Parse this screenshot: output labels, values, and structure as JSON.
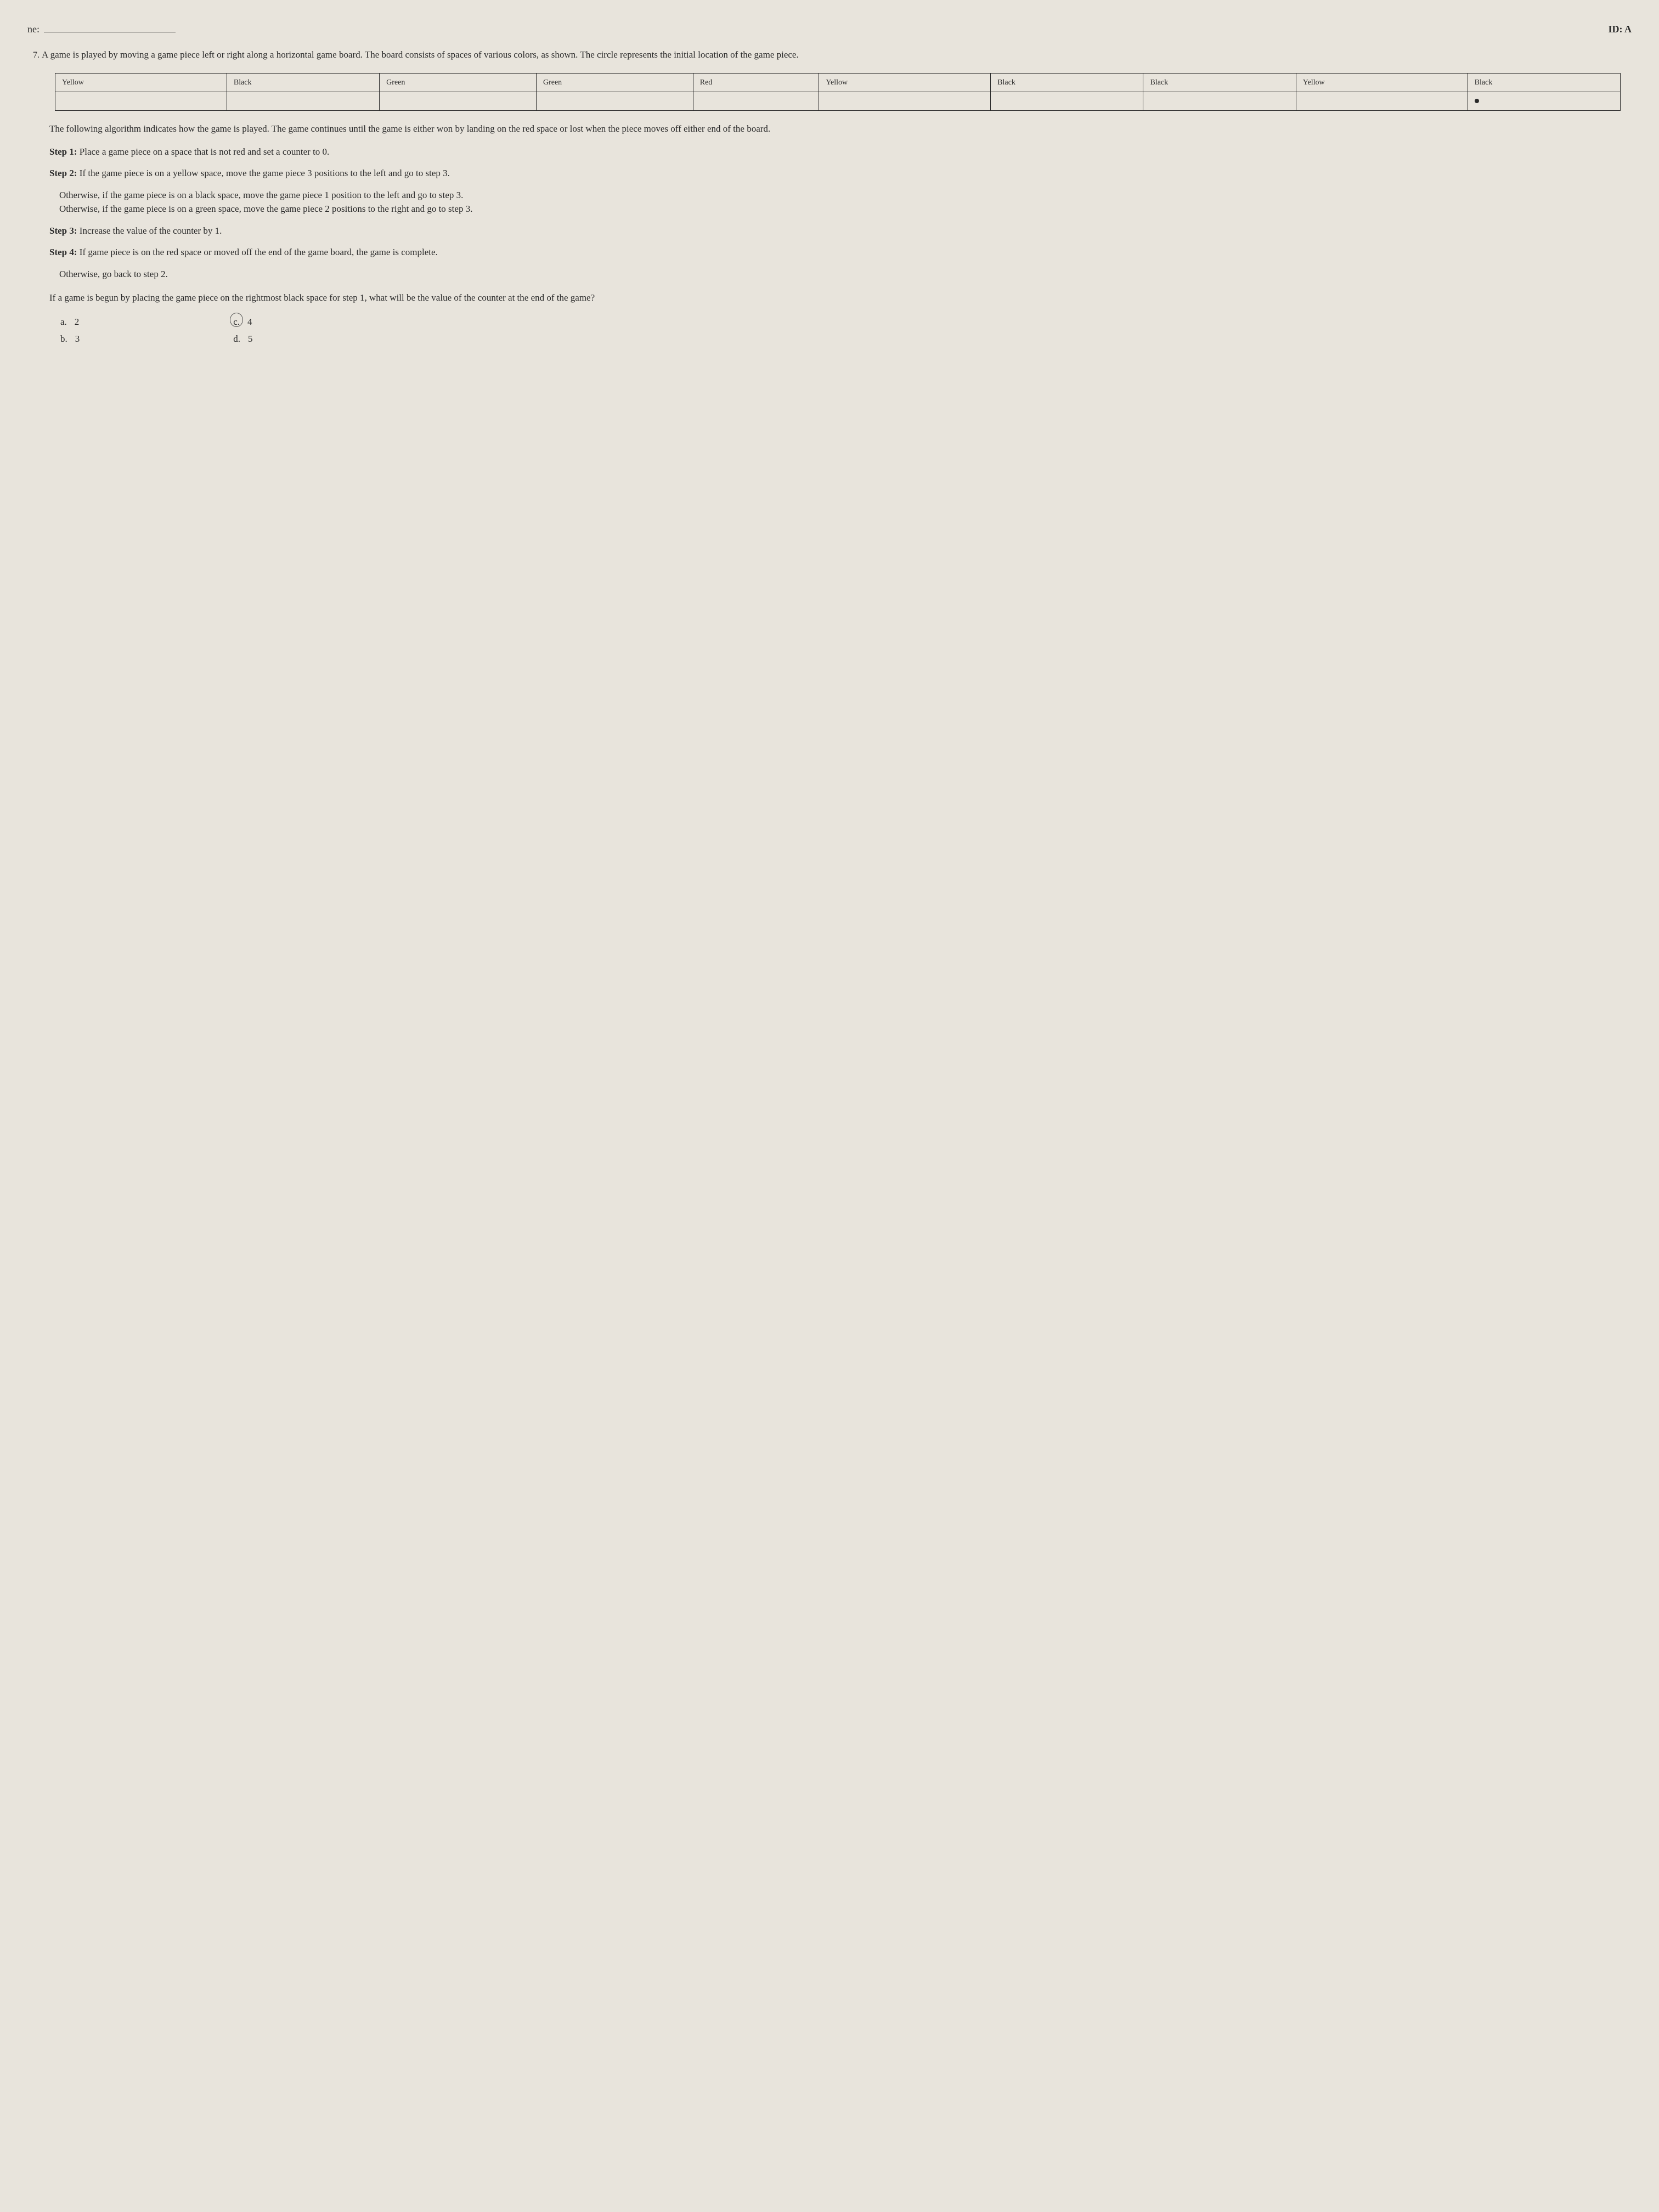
{
  "header": {
    "name_label": "ne:",
    "id_label": "ID: A"
  },
  "question": {
    "number": "7.",
    "intro": "A game is played by moving a game piece left or right along a horizontal game board. The board consists of spaces of various colors, as shown. The circle represents the initial location of the game piece."
  },
  "board": {
    "cells": [
      "Yellow",
      "Black",
      "Green",
      "Green",
      "Red",
      "Yellow",
      "Black",
      "Black",
      "Yellow",
      "Black"
    ],
    "dot_index": 9
  },
  "algorithm_intro": "The following algorithm indicates how the game is played. The game continues until the game is either won by landing on the red space or lost when the piece moves off either end of the board.",
  "steps": {
    "s1_label": "Step 1:",
    "s1_text": "Place a game piece on a space that is not red and set a counter to 0.",
    "s2_label": "Step 2:",
    "s2_text": "If the game piece is on a yellow space, move the game piece 3 positions to the left and go to step 3.",
    "s2_line2": "Otherwise, if the game piece is on a black space, move the game piece 1 position to the left and go to step 3.",
    "s2_line3": "Otherwise, if the game piece is on a green space, move the game piece 2 positions to the right and go to step 3.",
    "s3_label": "Step 3:",
    "s3_text": "Increase the value of the counter by 1.",
    "s4_label": "Step 4:",
    "s4_text": "If game piece is on the red space or moved off the end of the game board, the game is complete.",
    "s4_line2": "Otherwise, go back to step 2."
  },
  "final_question": "If a game is begun by placing the game piece on the rightmost black space for step 1, what will be the value of the counter at the end of the game?",
  "answers": {
    "a_label": "a.",
    "a_val": "2",
    "b_label": "b.",
    "b_val": "3",
    "c_label": "c.",
    "c_val": "4",
    "d_label": "d.",
    "d_val": "5"
  }
}
